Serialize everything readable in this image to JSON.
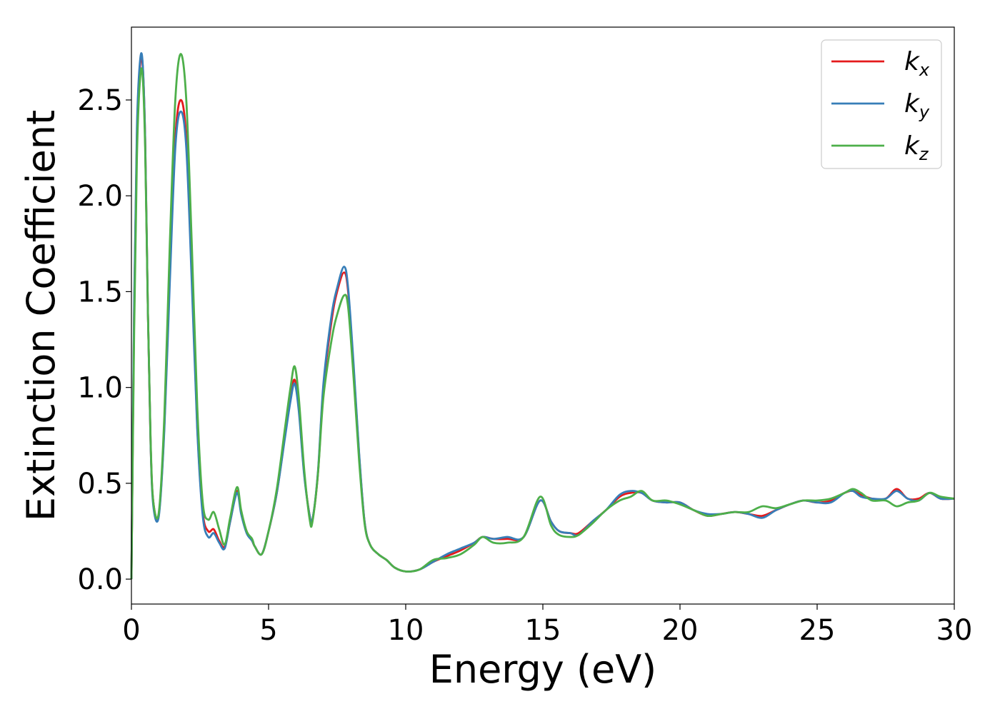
{
  "chart_data": {
    "type": "line",
    "xlabel": "Energy (eV)",
    "ylabel": "Extinction Coefficient",
    "xlim": [
      0,
      30
    ],
    "ylim": [
      -0.13,
      2.88
    ],
    "xticks": [
      "0",
      "5",
      "10",
      "15",
      "20",
      "25",
      "30"
    ],
    "yticks": [
      "0.0",
      "0.5",
      "1.0",
      "1.5",
      "2.0",
      "2.5"
    ],
    "grid": false,
    "legend_position": "top-right",
    "series": [
      {
        "name": "k",
        "subscript": "x",
        "color": "#e41a1c",
        "x": [
          0,
          0.1,
          0.2,
          0.3,
          0.4,
          0.5,
          0.6,
          0.7,
          0.8,
          1.0,
          1.2,
          1.4,
          1.6,
          1.8,
          2.0,
          2.2,
          2.4,
          2.6,
          2.8,
          3.0,
          3.2,
          3.4,
          3.6,
          3.85,
          4.0,
          4.2,
          4.4,
          4.5,
          4.75,
          5.0,
          5.3,
          5.6,
          5.8,
          5.95,
          6.1,
          6.3,
          6.5,
          6.6,
          6.8,
          7.0,
          7.3,
          7.5,
          7.75,
          7.9,
          8.1,
          8.3,
          8.5,
          8.7,
          9.0,
          9.3,
          9.6,
          10.0,
          10.5,
          11.0,
          11.5,
          12.0,
          12.5,
          12.8,
          13.2,
          13.7,
          14.3,
          14.9,
          15.3,
          15.6,
          16.0,
          16.3,
          16.8,
          17.3,
          17.8,
          18.2,
          18.6,
          19.0,
          19.5,
          20.0,
          20.5,
          21.0,
          21.5,
          22.0,
          22.5,
          23.0,
          23.5,
          24.0,
          24.5,
          25.0,
          25.5,
          26.0,
          26.3,
          26.6,
          27.0,
          27.5,
          27.9,
          28.3,
          28.7,
          29.1,
          29.5,
          30.0
        ],
        "y": [
          0.0,
          1.4,
          2.3,
          2.65,
          2.7,
          2.3,
          1.4,
          0.7,
          0.4,
          0.34,
          0.8,
          1.6,
          2.3,
          2.5,
          2.3,
          1.6,
          0.8,
          0.35,
          0.25,
          0.26,
          0.2,
          0.17,
          0.3,
          0.46,
          0.35,
          0.25,
          0.2,
          0.17,
          0.13,
          0.25,
          0.45,
          0.75,
          0.95,
          1.04,
          0.9,
          0.55,
          0.33,
          0.31,
          0.55,
          1.0,
          1.35,
          1.5,
          1.6,
          1.5,
          1.1,
          0.65,
          0.3,
          0.18,
          0.13,
          0.1,
          0.06,
          0.04,
          0.05,
          0.09,
          0.12,
          0.15,
          0.19,
          0.22,
          0.21,
          0.21,
          0.22,
          0.41,
          0.3,
          0.25,
          0.24,
          0.24,
          0.3,
          0.36,
          0.43,
          0.45,
          0.45,
          0.41,
          0.4,
          0.4,
          0.36,
          0.33,
          0.34,
          0.35,
          0.34,
          0.33,
          0.36,
          0.39,
          0.41,
          0.4,
          0.41,
          0.45,
          0.46,
          0.44,
          0.42,
          0.42,
          0.47,
          0.42,
          0.42,
          0.45,
          0.42,
          0.42
        ]
      },
      {
        "name": "k",
        "subscript": "y",
        "color": "#377eb8",
        "x": [
          0,
          0.1,
          0.2,
          0.3,
          0.4,
          0.5,
          0.6,
          0.7,
          0.8,
          1.0,
          1.2,
          1.4,
          1.6,
          1.8,
          2.0,
          2.2,
          2.4,
          2.6,
          2.8,
          3.0,
          3.2,
          3.4,
          3.6,
          3.85,
          4.0,
          4.2,
          4.4,
          4.5,
          4.75,
          5.0,
          5.3,
          5.6,
          5.8,
          5.95,
          6.1,
          6.3,
          6.5,
          6.6,
          6.8,
          7.0,
          7.3,
          7.5,
          7.75,
          7.9,
          8.1,
          8.3,
          8.5,
          8.7,
          9.0,
          9.3,
          9.6,
          10.0,
          10.5,
          11.0,
          11.5,
          12.0,
          12.5,
          12.8,
          13.2,
          13.7,
          14.3,
          14.9,
          15.3,
          15.6,
          16.0,
          16.3,
          16.8,
          17.3,
          17.8,
          18.2,
          18.6,
          19.0,
          19.5,
          20.0,
          20.5,
          21.0,
          21.5,
          22.0,
          22.5,
          23.0,
          23.5,
          24.0,
          24.5,
          25.0,
          25.5,
          26.0,
          26.3,
          26.6,
          27.0,
          27.5,
          27.9,
          28.3,
          28.7,
          29.1,
          29.5,
          30.0
        ],
        "y": [
          0.0,
          1.45,
          2.35,
          2.68,
          2.71,
          2.3,
          1.4,
          0.7,
          0.38,
          0.33,
          0.78,
          1.55,
          2.25,
          2.44,
          2.25,
          1.55,
          0.78,
          0.33,
          0.22,
          0.24,
          0.19,
          0.16,
          0.3,
          0.45,
          0.34,
          0.24,
          0.2,
          0.17,
          0.13,
          0.25,
          0.45,
          0.74,
          0.93,
          1.02,
          0.88,
          0.54,
          0.33,
          0.31,
          0.56,
          1.02,
          1.38,
          1.52,
          1.63,
          1.52,
          1.12,
          0.66,
          0.3,
          0.18,
          0.13,
          0.1,
          0.06,
          0.04,
          0.05,
          0.09,
          0.13,
          0.16,
          0.19,
          0.22,
          0.21,
          0.22,
          0.22,
          0.41,
          0.3,
          0.25,
          0.24,
          0.23,
          0.3,
          0.36,
          0.44,
          0.46,
          0.45,
          0.41,
          0.4,
          0.4,
          0.36,
          0.34,
          0.34,
          0.35,
          0.34,
          0.32,
          0.36,
          0.39,
          0.41,
          0.4,
          0.4,
          0.45,
          0.46,
          0.43,
          0.42,
          0.42,
          0.46,
          0.42,
          0.41,
          0.45,
          0.42,
          0.42
        ]
      },
      {
        "name": "k",
        "subscript": "z",
        "color": "#4daf4a",
        "x": [
          0,
          0.1,
          0.2,
          0.3,
          0.4,
          0.5,
          0.6,
          0.7,
          0.8,
          1.0,
          1.2,
          1.4,
          1.6,
          1.8,
          2.0,
          2.2,
          2.4,
          2.6,
          2.8,
          3.0,
          3.2,
          3.4,
          3.6,
          3.85,
          4.0,
          4.2,
          4.4,
          4.5,
          4.75,
          5.0,
          5.3,
          5.6,
          5.8,
          5.95,
          6.1,
          6.3,
          6.5,
          6.6,
          6.8,
          7.0,
          7.3,
          7.5,
          7.75,
          7.9,
          8.1,
          8.3,
          8.5,
          8.7,
          9.0,
          9.3,
          9.6,
          10.0,
          10.5,
          11.0,
          11.5,
          12.0,
          12.5,
          12.8,
          13.2,
          13.7,
          14.3,
          14.9,
          15.3,
          15.6,
          16.0,
          16.3,
          16.8,
          17.3,
          17.8,
          18.2,
          18.6,
          19.0,
          19.5,
          20.0,
          20.5,
          21.0,
          21.5,
          22.0,
          22.5,
          23.0,
          23.5,
          24.0,
          24.5,
          25.0,
          25.5,
          26.0,
          26.3,
          26.6,
          27.0,
          27.5,
          27.9,
          28.3,
          28.7,
          29.1,
          29.5,
          30.0
        ],
        "y": [
          0.0,
          1.3,
          2.2,
          2.58,
          2.64,
          2.25,
          1.4,
          0.72,
          0.4,
          0.35,
          0.85,
          1.75,
          2.5,
          2.74,
          2.5,
          1.75,
          0.9,
          0.4,
          0.31,
          0.35,
          0.26,
          0.18,
          0.32,
          0.48,
          0.36,
          0.25,
          0.21,
          0.17,
          0.13,
          0.25,
          0.47,
          0.79,
          1.0,
          1.11,
          0.95,
          0.57,
          0.31,
          0.3,
          0.55,
          0.95,
          1.25,
          1.38,
          1.48,
          1.42,
          1.05,
          0.62,
          0.29,
          0.18,
          0.13,
          0.1,
          0.06,
          0.04,
          0.05,
          0.1,
          0.11,
          0.13,
          0.18,
          0.22,
          0.19,
          0.19,
          0.22,
          0.43,
          0.28,
          0.23,
          0.22,
          0.23,
          0.29,
          0.36,
          0.41,
          0.43,
          0.46,
          0.41,
          0.41,
          0.39,
          0.36,
          0.33,
          0.34,
          0.35,
          0.35,
          0.38,
          0.37,
          0.39,
          0.41,
          0.41,
          0.42,
          0.45,
          0.47,
          0.45,
          0.41,
          0.41,
          0.38,
          0.4,
          0.41,
          0.45,
          0.43,
          0.42
        ]
      }
    ]
  }
}
